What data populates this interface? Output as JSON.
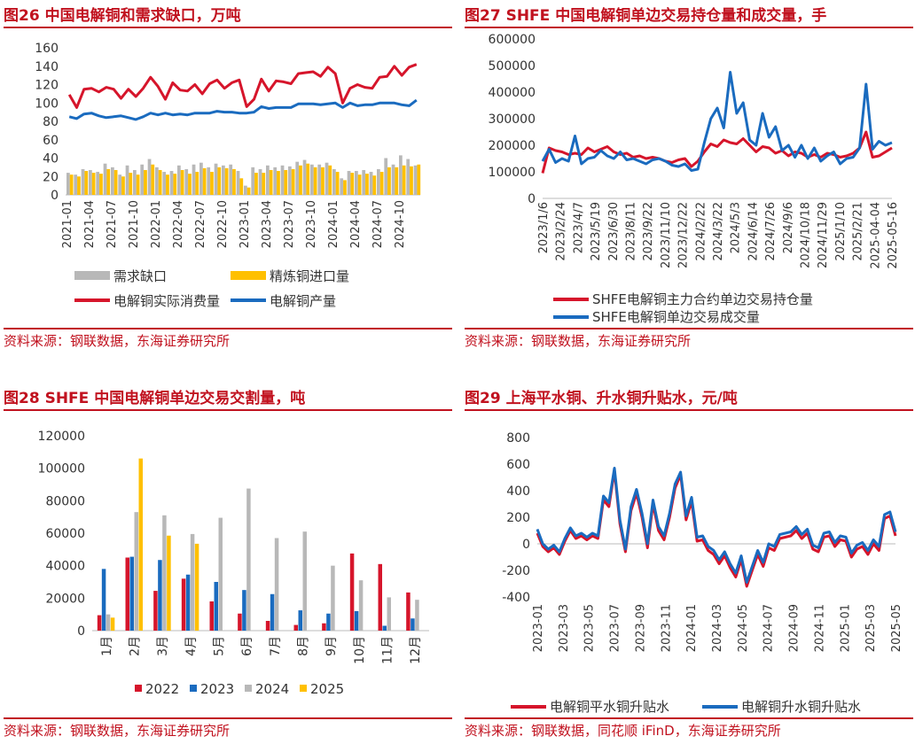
{
  "panels": [
    {
      "title": "图26  中国电解铜和需求缺口，万吨",
      "source": "资料来源：钢联数据，东海证券研究所"
    },
    {
      "title": "图27  SHFE 中国电解铜单边交易持仓量和成交量，手",
      "source": "资料来源：钢联数据，东海证券研究所"
    },
    {
      "title": "图28  SHFE 中国电解铜单边交易交割量，吨",
      "source": "资料来源：钢联数据，东海证券研究所"
    },
    {
      "title": "图29  上海平水铜、升水铜升贴水，元/吨",
      "source": "资料来源：钢联数据，同花顺 iFinD，东海证券研究所"
    }
  ],
  "colors": {
    "red": "#d6152b",
    "blue": "#1a6bbf",
    "gray": "#b8b8b8",
    "gold": "#ffc000",
    "title_red": "#c1121f"
  },
  "chart_data": [
    {
      "type": "bar",
      "x_ticks": [
        "2021-01",
        "2021-04",
        "2021-07",
        "2021-10",
        "2022-01",
        "2022-04",
        "2022-07",
        "2022-10",
        "2023-01",
        "2023-04",
        "2023-07",
        "2023-10",
        "2024-01",
        "2024-04",
        "2024-07",
        "2024-10"
      ],
      "ylim": [
        0,
        160
      ],
      "y_ticks": [
        0,
        20,
        40,
        60,
        80,
        100,
        120,
        140,
        160
      ],
      "series": [
        {
          "name": "需求缺口",
          "type": "bar",
          "values": [
            24,
            22,
            28,
            27,
            25,
            34,
            30,
            22,
            32,
            27,
            33,
            39,
            30,
            25,
            26,
            32,
            28,
            33,
            35,
            30,
            34,
            32,
            33,
            26,
            10,
            30,
            28,
            32,
            30,
            32,
            31,
            36,
            38,
            33,
            33,
            35,
            28,
            18,
            26,
            26,
            27,
            25,
            28,
            40,
            33,
            43,
            39,
            32
          ]
        },
        {
          "name": "精炼铜进口量",
          "type": "bar",
          "values": [
            22,
            20,
            26,
            24,
            23,
            28,
            27,
            20,
            24,
            22,
            27,
            33,
            27,
            22,
            23,
            27,
            23,
            25,
            29,
            25,
            30,
            29,
            28,
            18,
            8,
            24,
            24,
            27,
            26,
            27,
            28,
            32,
            34,
            30,
            30,
            32,
            25,
            16,
            24,
            22,
            23,
            21,
            25,
            30,
            30,
            32,
            31,
            33
          ]
        },
        {
          "name": "电解铜实际消费量",
          "type": "line",
          "values": [
            109,
            95,
            115,
            116,
            112,
            117,
            115,
            105,
            115,
            107,
            116,
            128,
            118,
            104,
            122,
            114,
            113,
            120,
            110,
            121,
            125,
            116,
            122,
            125,
            96,
            104,
            126,
            113,
            124,
            123,
            121,
            132,
            133,
            134,
            129,
            139,
            132,
            100,
            116,
            120,
            117,
            116,
            128,
            129,
            140,
            130,
            139,
            142
          ]
        },
        {
          "name": "电解铜产量",
          "type": "line",
          "values": [
            85,
            83,
            88,
            89,
            86,
            84,
            85,
            86,
            84,
            82,
            85,
            89,
            87,
            89,
            87,
            88,
            87,
            89,
            89,
            89,
            91,
            90,
            90,
            89,
            89,
            90,
            96,
            94,
            95,
            95,
            95,
            99,
            99,
            99,
            98,
            99,
            100,
            95,
            100,
            97,
            98,
            98,
            100,
            100,
            100,
            98,
            97,
            103
          ]
        }
      ]
    },
    {
      "type": "line",
      "x_ticks": [
        "2023/1/6",
        "2023/2/24",
        "2023/4/7",
        "2023/5/19",
        "2023/6/30",
        "2023/8/11",
        "2023/9/22",
        "2023/11/10",
        "2023/12/22",
        "2024/2/22",
        "2024/3/22",
        "2024/5/3",
        "2024/6/14",
        "2024/7/26",
        "2024/9/6",
        "2024/10/18",
        "2024/11/29",
        "2025/1/10",
        "2025/2/21",
        "2025-04-04",
        "2025-05-16"
      ],
      "ylim": [
        0,
        600000
      ],
      "y_ticks": [
        0,
        100000,
        200000,
        300000,
        400000,
        500000,
        600000
      ],
      "series": [
        {
          "name": "SHFE电解铜主力合约单边交易持仓量",
          "values": [
            95000,
            190000,
            180000,
            175000,
            165000,
            170000,
            165000,
            190000,
            175000,
            185000,
            195000,
            175000,
            165000,
            170000,
            155000,
            160000,
            150000,
            155000,
            150000,
            140000,
            135000,
            145000,
            150000,
            120000,
            140000,
            175000,
            205000,
            195000,
            220000,
            210000,
            205000,
            225000,
            200000,
            175000,
            195000,
            190000,
            170000,
            180000,
            160000,
            175000,
            170000,
            155000,
            165000,
            155000,
            170000,
            165000,
            155000,
            160000,
            170000,
            190000,
            250000,
            155000,
            160000,
            175000,
            190000
          ]
        },
        {
          "name": "SHFE电解铜单边交易成交量",
          "values": [
            140000,
            185000,
            135000,
            150000,
            140000,
            235000,
            130000,
            150000,
            155000,
            180000,
            160000,
            150000,
            175000,
            145000,
            150000,
            140000,
            130000,
            145000,
            150000,
            140000,
            125000,
            120000,
            130000,
            105000,
            110000,
            210000,
            300000,
            340000,
            265000,
            475000,
            320000,
            360000,
            220000,
            200000,
            320000,
            230000,
            270000,
            180000,
            200000,
            155000,
            200000,
            150000,
            190000,
            140000,
            160000,
            175000,
            130000,
            150000,
            155000,
            190000,
            430000,
            185000,
            215000,
            200000,
            210000
          ]
        }
      ]
    },
    {
      "type": "bar",
      "categories": [
        "1月",
        "2月",
        "3月",
        "4月",
        "5月",
        "6月",
        "7月",
        "8月",
        "9月",
        "10月",
        "11月",
        "12月"
      ],
      "ylim": [
        0,
        120000
      ],
      "y_ticks": [
        0,
        20000,
        40000,
        60000,
        80000,
        100000,
        120000
      ],
      "series": [
        {
          "name": "2022",
          "values": [
            9500,
            45000,
            24500,
            32000,
            18000,
            10500,
            6000,
            3500,
            4500,
            47500,
            41000,
            23500
          ]
        },
        {
          "name": "2023",
          "values": [
            38000,
            45500,
            43500,
            34500,
            30000,
            25000,
            22500,
            12500,
            10500,
            12000,
            3000,
            7500
          ]
        },
        {
          "name": "2024",
          "values": [
            10000,
            73000,
            71000,
            59500,
            69500,
            87500,
            57000,
            61000,
            40000,
            31000,
            20500,
            19000
          ]
        },
        {
          "name": "2025",
          "values": [
            8000,
            106000,
            58500,
            53500,
            null,
            null,
            null,
            null,
            null,
            null,
            null,
            null
          ]
        }
      ]
    },
    {
      "type": "line",
      "x_ticks": [
        "2023-01",
        "2023-03",
        "2023-05",
        "2023-07",
        "2023-09",
        "2023-11",
        "2024-01",
        "2024-03",
        "2024-05",
        "2024-07",
        "2024-09",
        "2024-11",
        "2025-01",
        "2025-03",
        "2025-05"
      ],
      "ylim": [
        -400,
        800
      ],
      "y_ticks": [
        -400,
        -200,
        0,
        200,
        400,
        600,
        800
      ],
      "series": [
        {
          "name": "电解铜平水铜升贴水",
          "values": [
            80,
            -20,
            -60,
            -30,
            -80,
            20,
            100,
            40,
            60,
            30,
            60,
            40,
            330,
            280,
            550,
            150,
            -60,
            250,
            380,
            200,
            -30,
            300,
            100,
            30,
            200,
            420,
            520,
            180,
            320,
            20,
            30,
            -50,
            -80,
            -150,
            -90,
            -180,
            -250,
            -120,
            -320,
            -200,
            -80,
            -170,
            -30,
            -50,
            40,
            50,
            60,
            100,
            40,
            80,
            -40,
            -60,
            50,
            60,
            -20,
            30,
            20,
            -100,
            -40,
            -20,
            -80,
            0,
            -50,
            190,
            210,
            60
          ]
        },
        {
          "name": "电解铜升水铜升贴水",
          "values": [
            110,
            0,
            -40,
            -10,
            -60,
            40,
            120,
            60,
            80,
            50,
            80,
            60,
            360,
            310,
            570,
            180,
            -40,
            280,
            410,
            230,
            0,
            330,
            130,
            60,
            230,
            450,
            540,
            210,
            350,
            50,
            60,
            -20,
            -50,
            -120,
            -60,
            -150,
            -220,
            -90,
            -290,
            -170,
            -50,
            -140,
            0,
            -20,
            70,
            80,
            90,
            130,
            70,
            110,
            -10,
            -30,
            80,
            90,
            10,
            60,
            50,
            -70,
            -10,
            10,
            -50,
            30,
            -20,
            220,
            240,
            90
          ]
        }
      ]
    }
  ]
}
